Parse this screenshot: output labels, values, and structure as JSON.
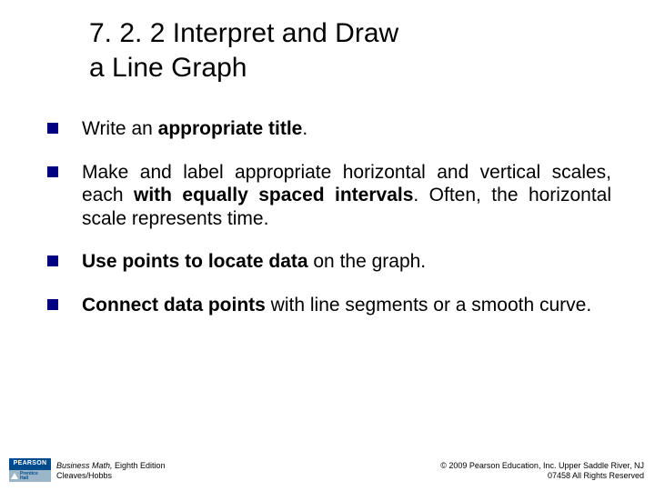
{
  "slide": {
    "title_line1": "7. 2. 2 Interpret and Draw",
    "title_line2": "a Line Graph",
    "bullets": [
      {
        "pre": "Write an ",
        "bold": "appropriate title",
        "post": "."
      },
      {
        "pre": "Make and label appropriate horizontal and vertical scales, each ",
        "bold": "with equally spaced intervals",
        "post": ". Often, the horizontal scale represents time."
      },
      {
        "pre": "",
        "bold": "Use points to locate data",
        "post": " on the graph."
      },
      {
        "pre": "",
        "bold": "Connect data points",
        "post": " with line segments or a smooth curve."
      }
    ]
  },
  "footer": {
    "logo_text": "PEARSON",
    "logo_sub1": "Prentice",
    "logo_sub2": "Hall",
    "book_title": "Business Math,",
    "edition": " Eighth Edition",
    "authors": "Cleaves/Hobbs",
    "copyright_line1": "© 2009 Pearson Education, Inc. Upper Saddle River, NJ",
    "copyright_line2": "07458  All Rights Reserved"
  },
  "colors": {
    "bullet_square": "#000080",
    "logo_top_bg": "#004b8d",
    "logo_bottom_bg": "#9bb6c9",
    "text": "#000000",
    "background": "#ffffff"
  }
}
